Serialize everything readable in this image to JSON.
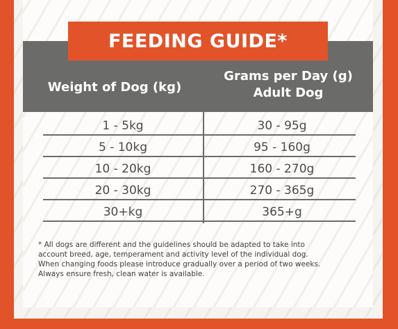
{
  "title": "FEEDING GUIDE*",
  "columns": {
    "weight": "Weight of Dog (kg)",
    "grams_line1": "Grams per Day (g)",
    "grams_line2": "Adult Dog"
  },
  "rows": [
    {
      "weight": "1 - 5kg",
      "grams": "30 - 95g"
    },
    {
      "weight": "5 - 10kg",
      "grams": "95 - 160g"
    },
    {
      "weight": "10 - 20kg",
      "grams": "160 - 270g"
    },
    {
      "weight": "20 - 30kg",
      "grams": "270 - 365g"
    },
    {
      "weight": "30+kg",
      "grams": "365+g"
    }
  ],
  "footnote": [
    "* All dogs are different and the guidelines should be adapted to take into",
    "account breed, age, temperament and activity level of the individual dog.",
    "When changing foods please introduce gradually over a period of two weeks.",
    "Always ensure fresh, clean water is available."
  ],
  "colors": {
    "accent": "#e2532a",
    "header_grey": "#6b6b69",
    "text": "#4a4a4a"
  }
}
